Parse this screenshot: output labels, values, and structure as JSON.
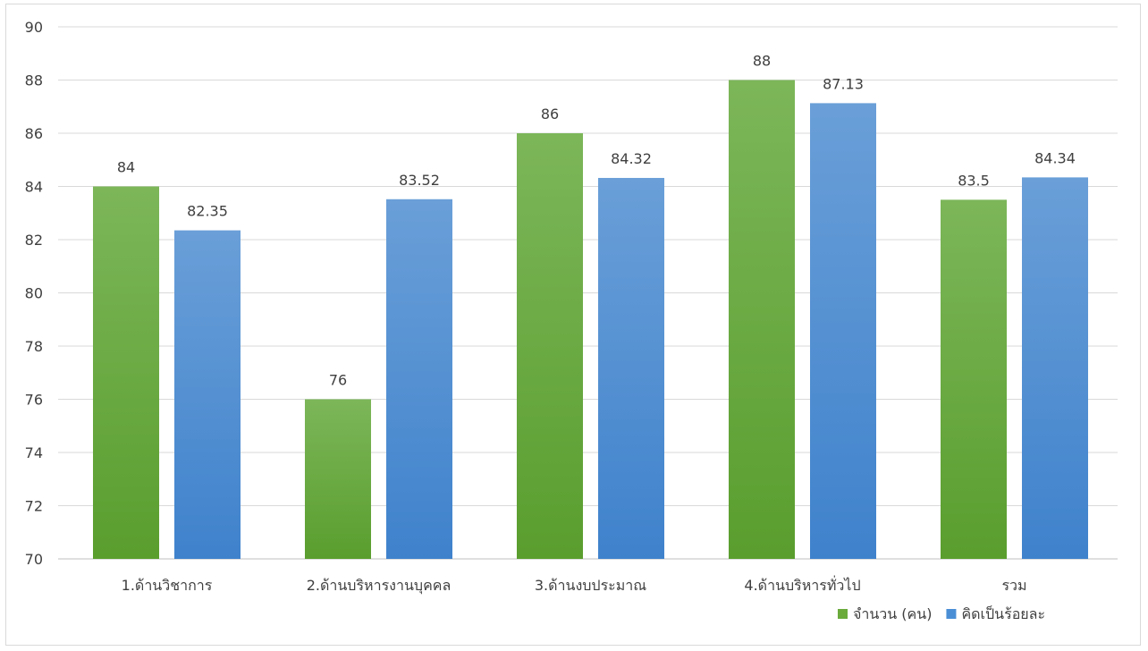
{
  "chart_data": {
    "type": "bar",
    "categories": [
      "1.ด้านวิชาการ",
      "2.ด้านบริหารงานบุคคล",
      "3.ด้านงบประมาณ",
      "4.ด้านบริหารทั่วไป",
      "รวม"
    ],
    "series": [
      {
        "name": "จำนวน (คน)",
        "values": [
          84,
          76,
          86,
          88,
          83.5
        ],
        "labels": [
          "84",
          "76",
          "86",
          "88",
          "83.5"
        ],
        "color": "#6aab3c"
      },
      {
        "name": "คิดเป็นร้อยละ",
        "values": [
          82.35,
          83.52,
          84.32,
          87.13,
          84.34
        ],
        "labels": [
          "82.35",
          "83.52",
          "84.32",
          "87.13",
          "84.34"
        ],
        "color": "#4a8fd6"
      }
    ],
    "y_ticks": [
      "70",
      "72",
      "74",
      "76",
      "78",
      "80",
      "82",
      "84",
      "86",
      "88",
      "90"
    ],
    "ylim": [
      70,
      90
    ],
    "ystep": 2,
    "grid": true,
    "legend": "bottom-right",
    "title": "",
    "xlabel": "",
    "ylabel": ""
  }
}
